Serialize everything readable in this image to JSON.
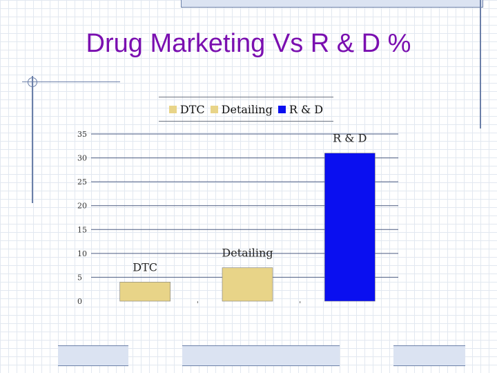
{
  "slide": {
    "title": "Drug Marketing Vs R & D %"
  },
  "chart_data": {
    "type": "bar",
    "title": "",
    "xlabel": "",
    "ylabel": "",
    "categories": [
      "DTC",
      "Detailing",
      "R & D"
    ],
    "values": [
      4,
      7,
      31
    ],
    "colors": [
      "#e8d488",
      "#e8d488",
      "#0a0ff0"
    ],
    "data_labels": [
      "DTC",
      "Detailing",
      "R & D"
    ],
    "ylim": [
      0,
      35
    ],
    "yticks": [
      0,
      5,
      10,
      15,
      20,
      25,
      30,
      35
    ],
    "grid": true,
    "legend_position": "top",
    "legend": [
      {
        "label": "DTC",
        "color": "#e8d488"
      },
      {
        "label": "Detailing",
        "color": "#e8d488"
      },
      {
        "label": "R & D",
        "color": "#0a0ff0"
      }
    ]
  }
}
